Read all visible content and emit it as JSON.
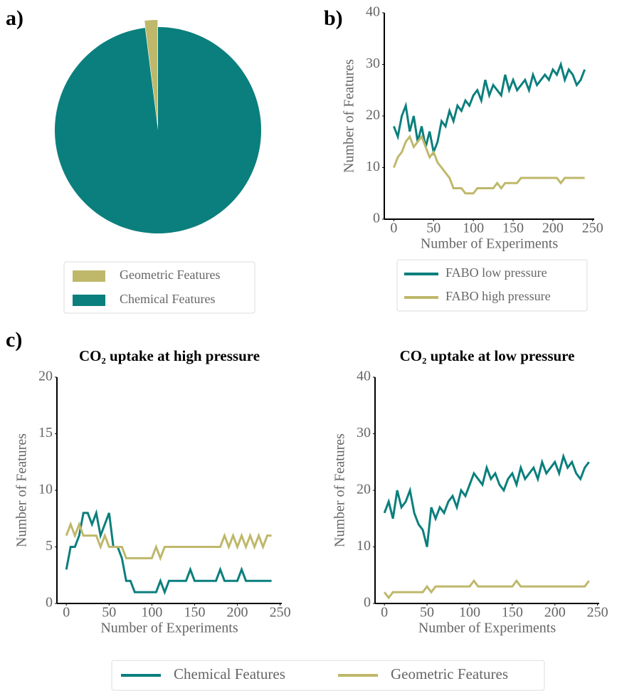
{
  "panels": [
    "a)",
    "b)",
    "c)"
  ],
  "chart_data": [
    {
      "type": "pie",
      "categories": [
        "Geometric Features",
        "Chemical Features"
      ],
      "values": [
        2,
        98
      ],
      "colors": [
        "#bfb86b",
        "#0b7f7d"
      ]
    },
    {
      "type": "line",
      "xlabel": "Number of Experiments",
      "ylabel": "Number of Features",
      "xlim": [
        -12,
        252
      ],
      "ylim": [
        0,
        40
      ],
      "xticks": [
        0,
        50,
        100,
        150,
        200,
        250
      ],
      "yticks": [
        0,
        10,
        20,
        30,
        40
      ],
      "legend": true,
      "x": [
        0,
        5,
        10,
        15,
        20,
        25,
        30,
        35,
        40,
        45,
        50,
        55,
        60,
        65,
        70,
        75,
        80,
        85,
        90,
        95,
        100,
        105,
        110,
        115,
        120,
        125,
        130,
        135,
        140,
        145,
        150,
        155,
        160,
        165,
        170,
        175,
        180,
        185,
        190,
        195,
        200,
        205,
        210,
        215,
        220,
        225,
        230,
        235,
        240
      ],
      "series": [
        {
          "name": "FABO low pressure",
          "color": "#0b7f7d",
          "values": [
            18,
            16,
            20,
            22,
            17,
            20,
            15,
            18,
            14,
            17,
            13,
            15,
            19,
            18,
            21,
            19,
            22,
            21,
            23,
            22,
            24,
            25,
            23,
            27,
            24,
            26,
            25,
            24,
            28,
            25,
            27,
            25,
            26,
            27,
            25,
            28,
            26,
            27,
            28,
            27,
            29,
            28,
            30,
            27,
            29,
            28,
            26,
            27,
            29
          ]
        },
        {
          "name": "FABO high pressure",
          "color": "#bfb86b",
          "values": [
            10,
            12,
            13,
            15,
            16,
            14,
            15,
            16,
            14,
            12,
            13,
            11,
            10,
            9,
            8,
            6,
            6,
            6,
            5,
            5,
            5,
            6,
            6,
            6,
            6,
            6,
            7,
            6,
            7,
            7,
            7,
            7,
            8,
            8,
            8,
            8,
            8,
            8,
            8,
            8,
            8,
            8,
            7,
            8,
            8,
            8,
            8,
            8,
            8
          ]
        }
      ]
    },
    {
      "type": "line",
      "title": "CO₂ uptake at high pressure",
      "xlabel": "Number of Experiments",
      "ylabel": "Number of Features",
      "xlim": [
        -11,
        252
      ],
      "ylim": [
        0,
        20
      ],
      "xticks": [
        0,
        50,
        100,
        150,
        200,
        250
      ],
      "yticks": [
        0,
        5,
        10,
        15,
        20
      ],
      "x": [
        0,
        5,
        10,
        15,
        20,
        25,
        30,
        35,
        40,
        45,
        50,
        55,
        60,
        65,
        70,
        75,
        80,
        85,
        90,
        95,
        100,
        105,
        110,
        115,
        120,
        125,
        130,
        135,
        140,
        145,
        150,
        155,
        160,
        165,
        170,
        175,
        180,
        185,
        190,
        195,
        200,
        205,
        210,
        215,
        220,
        225,
        230,
        235,
        240
      ],
      "series": [
        {
          "name": "Chemical Features",
          "color": "#0b7f7d",
          "values": [
            3,
            5,
            5,
            6,
            8,
            8,
            7,
            8,
            6,
            7,
            8,
            5,
            5,
            4,
            2,
            2,
            1,
            1,
            1,
            1,
            1,
            1,
            2,
            1,
            2,
            2,
            2,
            2,
            2,
            3,
            2,
            2,
            2,
            2,
            2,
            2,
            3,
            2,
            2,
            2,
            2,
            3,
            2,
            2,
            2,
            2,
            2,
            2,
            2
          ]
        },
        {
          "name": "Geometric Features",
          "color": "#bfb86b",
          "values": [
            6,
            7,
            6,
            7,
            6,
            6,
            6,
            6,
            5,
            6,
            5,
            5,
            5,
            5,
            4,
            4,
            4,
            4,
            4,
            4,
            4,
            5,
            4,
            5,
            5,
            5,
            5,
            5,
            5,
            5,
            5,
            5,
            5,
            5,
            5,
            5,
            5,
            6,
            5,
            6,
            5,
            6,
            5,
            6,
            5,
            6,
            5,
            6,
            6
          ]
        }
      ]
    },
    {
      "type": "line",
      "title": "CO₂ uptake at low pressure",
      "xlabel": "Number of Experiments",
      "ylabel": "Number of Features",
      "xlim": [
        -11,
        252
      ],
      "ylim": [
        0,
        40
      ],
      "xticks": [
        0,
        50,
        100,
        150,
        200,
        250
      ],
      "yticks": [
        0,
        10,
        20,
        30,
        40
      ],
      "x": [
        0,
        5,
        10,
        15,
        20,
        25,
        30,
        35,
        40,
        45,
        50,
        55,
        60,
        65,
        70,
        75,
        80,
        85,
        90,
        95,
        100,
        105,
        110,
        115,
        120,
        125,
        130,
        135,
        140,
        145,
        150,
        155,
        160,
        165,
        170,
        175,
        180,
        185,
        190,
        195,
        200,
        205,
        210,
        215,
        220,
        225,
        230,
        235,
        240
      ],
      "series": [
        {
          "name": "Chemical Features",
          "color": "#0b7f7d",
          "values": [
            16,
            18,
            15,
            20,
            17,
            18,
            20,
            16,
            14,
            13,
            10,
            17,
            15,
            17,
            16,
            18,
            19,
            17,
            20,
            19,
            21,
            23,
            22,
            21,
            24,
            22,
            23,
            21,
            20,
            22,
            23,
            21,
            24,
            22,
            23,
            24,
            22,
            25,
            23,
            24,
            25,
            23,
            26,
            24,
            25,
            23,
            22,
            24,
            25
          ]
        },
        {
          "name": "Geometric Features",
          "color": "#bfb86b",
          "values": [
            2,
            1,
            2,
            2,
            2,
            2,
            2,
            2,
            2,
            2,
            3,
            2,
            3,
            3,
            3,
            3,
            3,
            3,
            3,
            3,
            3,
            4,
            3,
            3,
            3,
            3,
            3,
            3,
            3,
            3,
            3,
            4,
            3,
            3,
            3,
            3,
            3,
            3,
            3,
            3,
            3,
            3,
            3,
            3,
            3,
            3,
            3,
            3,
            4
          ]
        }
      ]
    }
  ]
}
